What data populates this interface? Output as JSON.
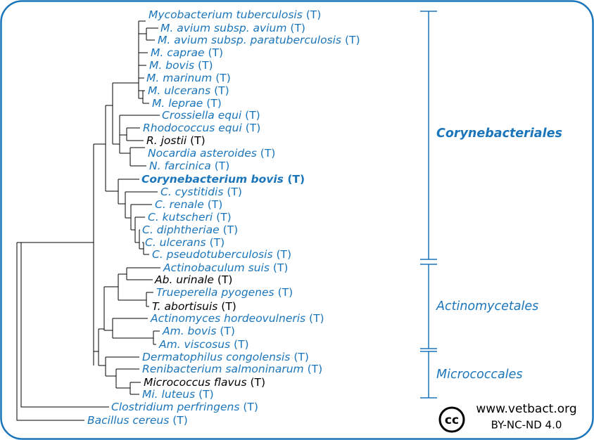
{
  "leaves": [
    {
      "name": "Mycobacterium tuberculosis",
      "suffix": "(T)",
      "color": "#1a75bb"
    },
    {
      "name": "M. avium subsp. avium",
      "suffix": "(T)",
      "color": "#1a75bb"
    },
    {
      "name": "M. avium subsp. paratuberculosis",
      "suffix": "(T)",
      "color": "#1a75bb"
    },
    {
      "name": "M. caprae",
      "suffix": "(T)",
      "color": "#1a75bb"
    },
    {
      "name": "M. bovis",
      "suffix": "(T)",
      "color": "#1a75bb"
    },
    {
      "name": "M. marinum",
      "suffix": "(T)",
      "color": "#1a75bb"
    },
    {
      "name": "M. ulcerans",
      "suffix": "(T)",
      "color": "#1a75bb"
    },
    {
      "name": "M. leprae",
      "suffix": "(T)",
      "color": "#1a75bb"
    },
    {
      "name": "Crossiella equi",
      "suffix": "(T)",
      "color": "#1a75bb"
    },
    {
      "name": "Rhodococcus equi",
      "suffix": "(T)",
      "color": "#1a75bb"
    },
    {
      "name": "R. jostii",
      "suffix": "(T)",
      "color": "#000000"
    },
    {
      "name": "Nocardia asteroides",
      "suffix": "(T)",
      "color": "#1a75bb"
    },
    {
      "name": "N. farcinica",
      "suffix": "(T)",
      "color": "#1a75bb"
    },
    {
      "name": "Corynebacterium bovis",
      "suffix": "(T)",
      "color": "#1a75bb",
      "bold": true
    },
    {
      "name": "C. cystitidis",
      "suffix": "(T)",
      "color": "#1a75bb"
    },
    {
      "name": "C. renale",
      "suffix": "(T)",
      "color": "#1a75bb"
    },
    {
      "name": "C. kutscheri",
      "suffix": "(T)",
      "color": "#1a75bb"
    },
    {
      "name": "C. diphtheriae",
      "suffix": "(T)",
      "color": "#1a75bb"
    },
    {
      "name": "C. ulcerans",
      "suffix": "(T)",
      "color": "#1a75bb"
    },
    {
      "name": "C. pseudotuberculosis",
      "suffix": "(T)",
      "color": "#1a75bb"
    },
    {
      "name": "Actinobaculum suis",
      "suffix": "(T)",
      "color": "#1a75bb"
    },
    {
      "name": "Ab. urinale",
      "suffix": "(T)",
      "color": "#000000"
    },
    {
      "name": "Trueperella pyogenes",
      "suffix": "(T)",
      "color": "#1a75bb"
    },
    {
      "name": "T. abortisuis",
      "suffix": "(T)",
      "color": "#000000"
    },
    {
      "name": "Actinomyces hordeovulneris",
      "suffix": "(T)",
      "color": "#1a75bb"
    },
    {
      "name": "Am. bovis",
      "suffix": "(T)",
      "color": "#1a75bb"
    },
    {
      "name": "Am. viscosus",
      "suffix": "(T)",
      "color": "#1a75bb"
    },
    {
      "name": "Dermatophilus congolensis",
      "suffix": "(T)",
      "color": "#1a75bb"
    },
    {
      "name": "Renibacterium salmoninarum",
      "suffix": "(T)",
      "color": "#1a75bb"
    },
    {
      "name": "Micrococcus flavus",
      "suffix": "(T)",
      "color": "#000000"
    },
    {
      "name": "Mi. luteus",
      "suffix": "(T)",
      "color": "#1a75bb"
    },
    {
      "name": "Clostridium perfringens",
      "suffix": "(T)",
      "color": "#1a75bb"
    },
    {
      "name": "Bacillus cereus",
      "suffix": "(T)",
      "color": "#1a75bb"
    }
  ],
  "groups": [
    "Corynebacteriales",
    "Actinomycetales",
    "Micrococcales"
  ],
  "license": {
    "logo": "cc",
    "site": "www.vetbact.org",
    "terms": "BY-NC-ND 4.0"
  }
}
